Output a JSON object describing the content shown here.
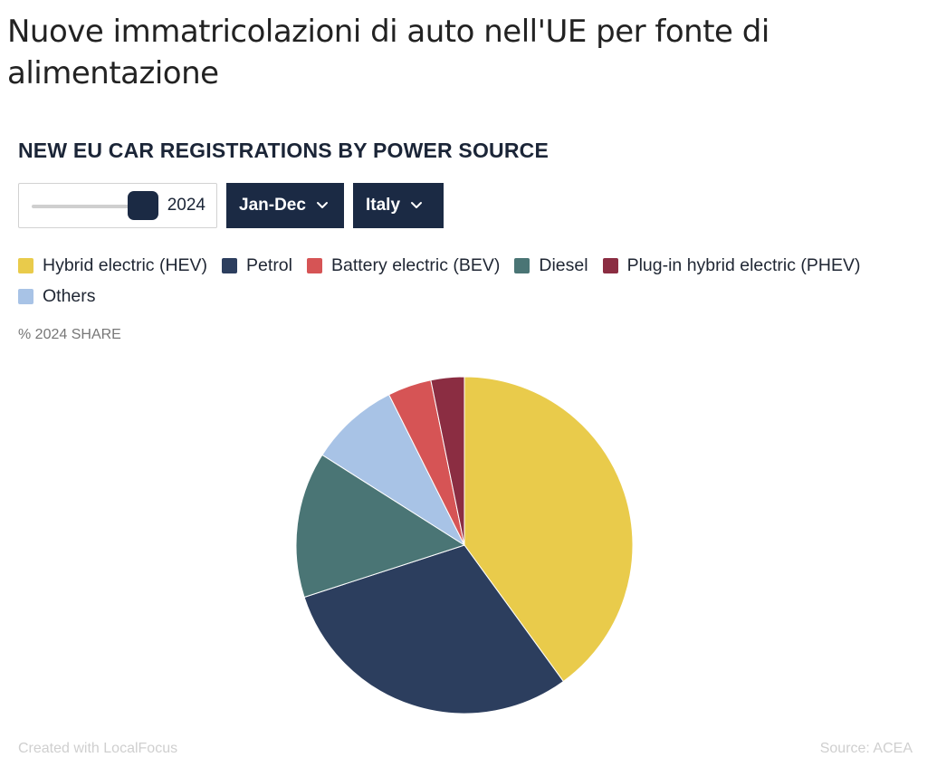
{
  "page_title": "Nuove immatricolazioni di auto nell'UE per fonte di alimentazione",
  "chart_heading": "NEW EU CAR REGISTRATIONS BY POWER SOURCE",
  "controls": {
    "year_value": "2024",
    "period_label": "Jan-Dec",
    "country_label": "Italy",
    "chevron_icon": "chevron-down-icon"
  },
  "share_label": "% 2024 SHARE",
  "footer": {
    "created_with": "Created with LocalFocus",
    "source": "Source:  ACEA"
  },
  "chart_data": {
    "type": "pie",
    "title": "NEW EU CAR REGISTRATIONS BY POWER SOURCE",
    "subtitle": "% 2024 SHARE",
    "legend_placement": "top-left",
    "slices": [
      {
        "label": "Hybrid electric (HEV)",
        "value": 40.0,
        "color": "#e9cb4b"
      },
      {
        "label": "Petrol",
        "value": 30.0,
        "color": "#2c3e5e"
      },
      {
        "label": "Diesel",
        "value": 14.0,
        "color": "#4a7575"
      },
      {
        "label": "Others",
        "value": 8.6,
        "color": "#a8c3e6"
      },
      {
        "label": "Battery electric (BEV)",
        "value": 4.2,
        "color": "#d65455"
      },
      {
        "label": "Plug-in hybrid electric (PHEV)",
        "value": 3.2,
        "color": "#8b2d42"
      }
    ],
    "legend_order": [
      "Hybrid electric (HEV)",
      "Petrol",
      "Battery electric (BEV)",
      "Diesel",
      "Plug-in hybrid electric (PHEV)",
      "Others"
    ]
  }
}
